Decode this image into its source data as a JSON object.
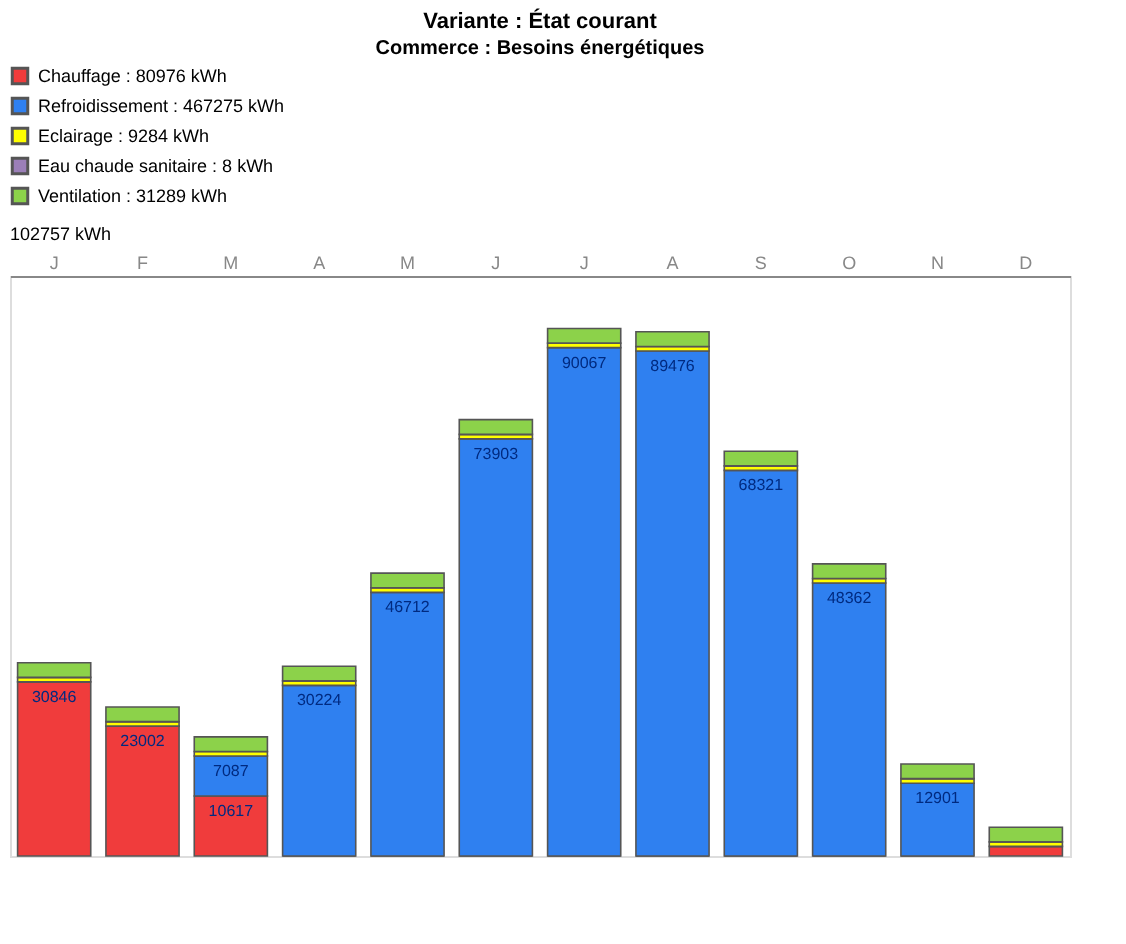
{
  "chart_data": {
    "type": "bar",
    "stacked": true,
    "title": "Variante : État courant",
    "subtitle": "Commerce : Besoins énergétiques",
    "categories": [
      "J",
      "F",
      "M",
      "A",
      "M",
      "J",
      "J",
      "A",
      "S",
      "O",
      "N",
      "D"
    ],
    "series": [
      {
        "name": "Chauffage : 80976 kWh",
        "color": "#f03c3c",
        "values": [
          30846,
          23002,
          10617,
          0,
          0,
          0,
          0,
          0,
          0,
          0,
          0,
          1700
        ],
        "value_labels": [
          "30846",
          "23002",
          "10617",
          null,
          null,
          null,
          null,
          null,
          null,
          null,
          null,
          null
        ]
      },
      {
        "name": "Refroidissement : 467275 kWh",
        "color": "#2f80f0",
        "values": [
          0,
          0,
          7087,
          30224,
          46712,
          73903,
          90067,
          89476,
          68321,
          48362,
          12901,
          0
        ],
        "value_labels": [
          null,
          null,
          "7087",
          "30224",
          "46712",
          "73903",
          "90067",
          "89476",
          "68321",
          "48362",
          "12901",
          null
        ]
      },
      {
        "name": "Eclairage : 9284 kWh",
        "color": "#ffff00",
        "values": [
          800,
          800,
          800,
          800,
          800,
          800,
          800,
          800,
          800,
          800,
          800,
          800
        ]
      },
      {
        "name": "Eau chaude sanitaire : 8 kWh",
        "color": "#9b7fb8",
        "values": [
          0,
          0,
          0,
          0,
          0,
          0,
          0,
          0,
          0,
          0,
          0,
          0
        ]
      },
      {
        "name": "Ventilation : 31289 kWh",
        "color": "#8cd24a",
        "values": [
          2600,
          2600,
          2600,
          2600,
          2600,
          2600,
          2600,
          2600,
          2600,
          2600,
          2600,
          2600
        ]
      }
    ],
    "ylim": [
      0,
      102757
    ],
    "annotations": [
      "102757 kWh"
    ],
    "legend": "top",
    "grid": false
  }
}
